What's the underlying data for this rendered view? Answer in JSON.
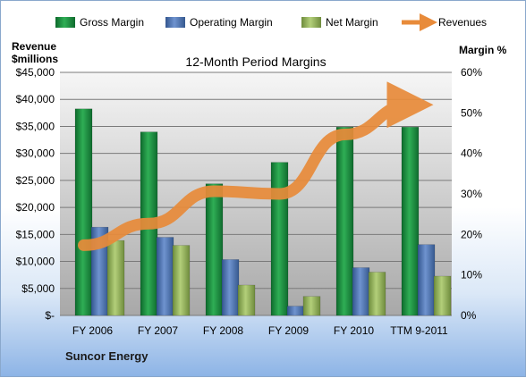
{
  "chart_data": {
    "type": "bar",
    "title": "12-Month Period Margins",
    "left_axis_label_line1": "Revenue",
    "left_axis_label_line2": "$millions",
    "right_axis_label": "Margin %",
    "categories": [
      "FY 2006",
      "FY 2007",
      "FY 2008",
      "FY 2009",
      "FY 2010",
      "TTM 9-2011"
    ],
    "left_ylim": [
      0,
      45000
    ],
    "left_ticks": [
      "$-",
      "$5,000",
      "$10,000",
      "$15,000",
      "$20,000",
      "$25,000",
      "$30,000",
      "$35,000",
      "$40,000",
      "$45,000"
    ],
    "right_ylim": [
      0,
      60
    ],
    "right_ticks": [
      "0%",
      "10%",
      "20%",
      "30%",
      "40%",
      "50%",
      "60%"
    ],
    "series": [
      {
        "name": "Gross Margin",
        "axis": "right",
        "color": "#1e8c3e",
        "values": [
          51,
          45.3,
          32.5,
          37.8,
          46.5,
          46.5
        ]
      },
      {
        "name": "Operating Margin",
        "axis": "right",
        "color": "#4f74b3",
        "values": [
          21.8,
          19.3,
          13.8,
          2.3,
          11.8,
          17.5
        ]
      },
      {
        "name": "Net Margin",
        "axis": "right",
        "color": "#8eb057",
        "values": [
          18.5,
          17.3,
          7.5,
          4.7,
          10.7,
          9.7
        ]
      }
    ],
    "line_series": {
      "name": "Revenues",
      "axis": "left",
      "color": "#e88b3a",
      "values": [
        13000,
        17000,
        23000,
        22500,
        33500,
        39000
      ]
    },
    "grid": true,
    "legend_position": "top",
    "footer": "Suncor Energy"
  }
}
